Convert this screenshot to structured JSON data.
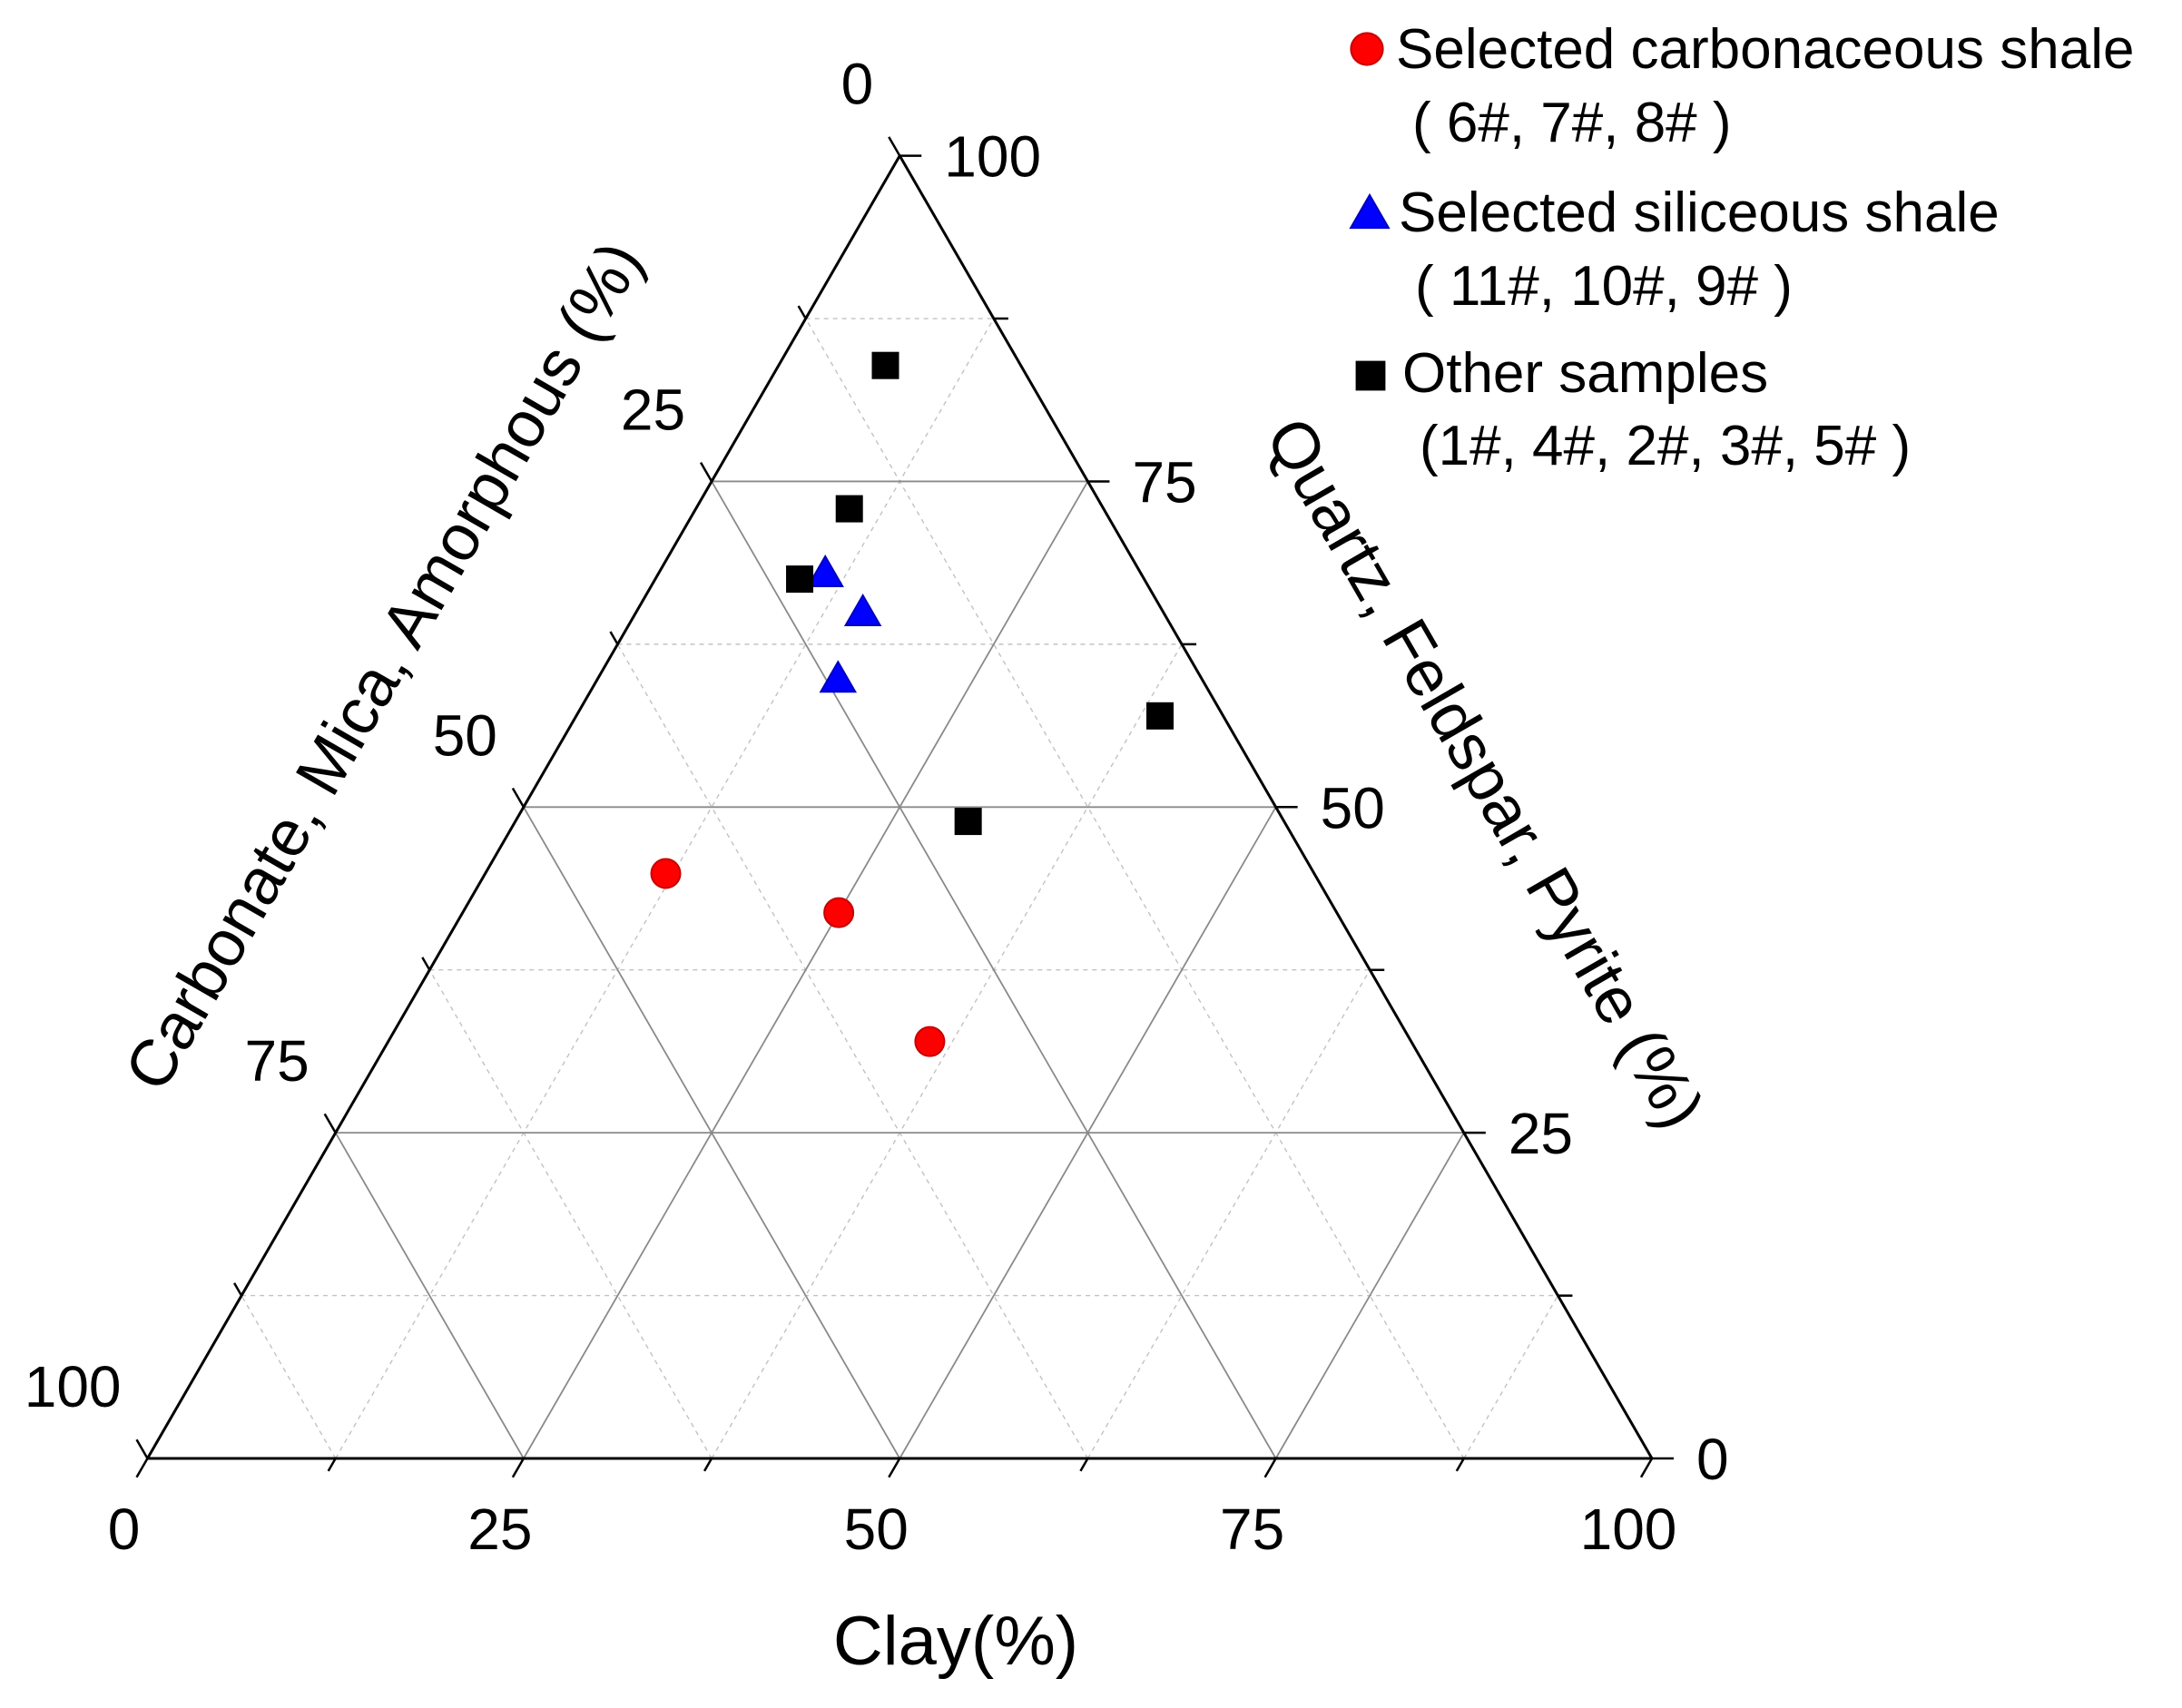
{
  "chart_data": {
    "type": "scatter",
    "legend": "top-right",
    "axes": {
      "clay": {
        "label": "Clay(%)",
        "range": [
          0,
          100
        ],
        "ticks": [
          0,
          25,
          50,
          75,
          100
        ]
      },
      "quartz": {
        "label": "Quartz, Feldspar, Pyrite (%)",
        "range": [
          0,
          100
        ],
        "ticks": [
          0,
          25,
          50,
          75,
          100
        ]
      },
      "carbonate": {
        "label": "Carbonate, Mica, Amorphous (%)",
        "range": [
          0,
          100
        ],
        "ticks": [
          0,
          25,
          50,
          75,
          100
        ]
      }
    },
    "grid": {
      "major": [
        25,
        50,
        75
      ],
      "minor": [
        12.5,
        37.5,
        62.5,
        87.5
      ]
    },
    "series": [
      {
        "name": "Selected carbonaceous shale",
        "samples": "( 6#, 7#, 8# )",
        "marker": "circle",
        "color": "#ff0000",
        "edge_color": "#c80000",
        "points": [
          {
            "clay": 12.0,
            "quartz": 44.9,
            "carbonate": 43.1
          },
          {
            "clay": 25.0,
            "quartz": 41.9,
            "carbonate": 33.1
          },
          {
            "clay": 36.0,
            "quartz": 32.0,
            "carbonate": 32.0
          }
        ]
      },
      {
        "name": "Selected siliceous shale",
        "samples": "( 11#, 10#, 9# )",
        "marker": "triangle",
        "color": "#0000ff",
        "edge_color": "#0000c0",
        "points": [
          {
            "clay": 11.0,
            "quartz": 68.1,
            "carbonate": 20.9
          },
          {
            "clay": 15.0,
            "quartz": 65.1,
            "carbonate": 19.9
          },
          {
            "clay": 15.9,
            "quartz": 60.0,
            "carbonate": 24.1
          }
        ]
      },
      {
        "name": "Other samples",
        "samples": "(1#, 4#, 2#, 3#, 5# )",
        "marker": "square",
        "color": "#000000",
        "edge_color": "#000000",
        "points": [
          {
            "clay": 7.1,
            "quartz": 83.9,
            "carbonate": 9.0
          },
          {
            "clay": 10.2,
            "quartz": 72.9,
            "carbonate": 16.9
          },
          {
            "clay": 9.6,
            "quartz": 67.5,
            "carbonate": 22.9
          },
          {
            "clay": 38.8,
            "quartz": 57.0,
            "carbonate": 4.2
          },
          {
            "clay": 30.1,
            "quartz": 48.9,
            "carbonate": 21.0
          }
        ]
      }
    ]
  }
}
